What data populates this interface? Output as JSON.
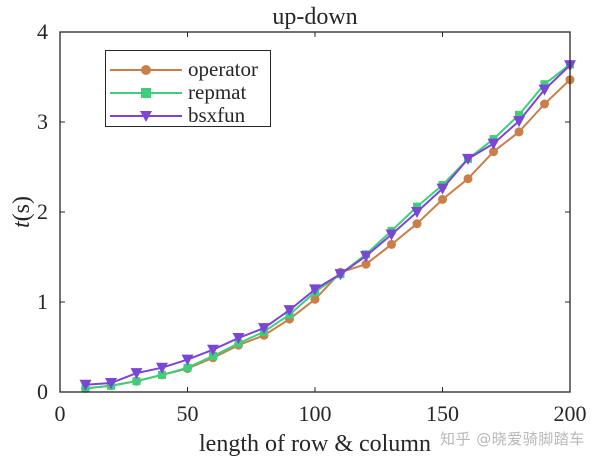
{
  "chart_data": {
    "type": "line",
    "title": "up-down",
    "xlabel": "length of row & column",
    "ylabel": "t(s)",
    "xlim": [
      0,
      200
    ],
    "ylim": [
      0,
      4
    ],
    "xticks": [
      0,
      50,
      100,
      150,
      200
    ],
    "yticks": [
      0,
      1,
      2,
      3,
      4
    ],
    "grid": false,
    "legend_position": "upper left",
    "x": [
      10,
      20,
      30,
      40,
      50,
      60,
      70,
      80,
      90,
      100,
      110,
      120,
      130,
      140,
      150,
      160,
      170,
      180,
      190,
      200
    ],
    "series": [
      {
        "name": "operator",
        "color": "#c97f4a",
        "marker": "circle",
        "values": [
          0.04,
          0.07,
          0.12,
          0.19,
          0.26,
          0.38,
          0.52,
          0.63,
          0.81,
          1.03,
          1.33,
          1.42,
          1.64,
          1.87,
          2.14,
          2.37,
          2.67,
          2.89,
          3.2,
          3.47
        ]
      },
      {
        "name": "repmat",
        "color": "#3fcf7c",
        "marker": "square",
        "values": [
          0.04,
          0.07,
          0.12,
          0.19,
          0.27,
          0.4,
          0.54,
          0.67,
          0.86,
          1.11,
          1.31,
          1.53,
          1.79,
          2.06,
          2.3,
          2.59,
          2.81,
          3.08,
          3.42,
          3.64
        ]
      },
      {
        "name": "bsxfun",
        "color": "#7b46d6",
        "marker": "triangle-down",
        "values": [
          0.08,
          0.1,
          0.21,
          0.27,
          0.36,
          0.47,
          0.6,
          0.71,
          0.91,
          1.14,
          1.31,
          1.51,
          1.75,
          2.0,
          2.26,
          2.59,
          2.76,
          3.01,
          3.36,
          3.63
        ]
      }
    ]
  },
  "labels": {
    "title": "up-down",
    "xlabel": "length of row & column",
    "ylabel_italic": "t",
    "ylabel_rest": "(s)",
    "xtick_labels": [
      "0",
      "50",
      "100",
      "150",
      "200"
    ],
    "ytick_labels": [
      "0",
      "1",
      "2",
      "3",
      "4"
    ]
  },
  "legend": {
    "items": [
      {
        "label": "operator"
      },
      {
        "label": "repmat"
      },
      {
        "label": "bsxfun"
      }
    ]
  },
  "watermark": "知乎 @晓爱骑脚踏车"
}
